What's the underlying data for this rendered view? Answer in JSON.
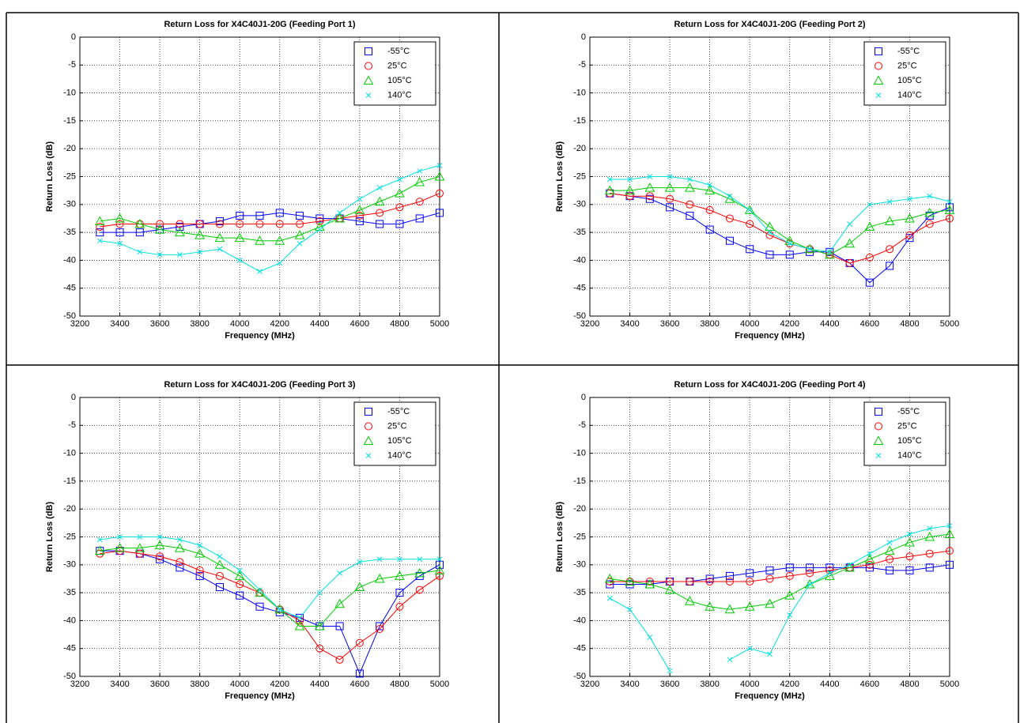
{
  "chart_data": [
    {
      "type": "line",
      "title": "Return Loss for X4C40J1-20G (Feeding Port 1)",
      "x_label": "Frequency (MHz)",
      "y_label": "Return Loss (dB)",
      "x": [
        3300,
        3400,
        3500,
        3600,
        3700,
        3800,
        3900,
        4000,
        4100,
        4200,
        4300,
        4400,
        4500,
        4600,
        4700,
        4800,
        4900,
        5000
      ],
      "xlim": [
        3200,
        5000
      ],
      "xticks": [
        3200,
        3400,
        3600,
        3800,
        4000,
        4200,
        4400,
        4600,
        4800,
        5000
      ],
      "ylim": [
        -50,
        0
      ],
      "yticks": [
        0,
        -5,
        -10,
        -15,
        -20,
        -25,
        -30,
        -35,
        -40,
        -45,
        -50
      ],
      "grid": true,
      "legend": "upper right",
      "series": [
        {
          "name": "-55°C",
          "color": "#0000ff",
          "marker": "square",
          "values": [
            -35,
            -35,
            -35,
            -34.5,
            -34,
            -33.5,
            -33,
            -32,
            -32,
            -31.5,
            -32,
            -32.5,
            -32.5,
            -33,
            -33.5,
            -33.5,
            -32.5,
            -31.5
          ]
        },
        {
          "name": "25°C",
          "color": "#ff0000",
          "marker": "circle",
          "values": [
            -34,
            -33.5,
            -33.5,
            -33.5,
            -33.5,
            -33.5,
            -33.5,
            -33.5,
            -33.5,
            -33.5,
            -33.5,
            -33,
            -32.5,
            -32,
            -31.5,
            -30.5,
            -29.5,
            -28
          ]
        },
        {
          "name": "105°C",
          "color": "#00cc00",
          "marker": "triangle",
          "values": [
            -33,
            -32.5,
            -33.5,
            -34.5,
            -35,
            -35.5,
            -36,
            -36,
            -36.5,
            -36.5,
            -35.5,
            -34,
            -32.5,
            -31,
            -29.5,
            -28,
            -26,
            -25
          ]
        },
        {
          "name": "140°C",
          "color": "#00e0e0",
          "marker": "x",
          "values": [
            -36.5,
            -37,
            -38.5,
            -39,
            -39,
            -38.5,
            -38,
            -40,
            -42,
            -40.5,
            -37,
            -34.5,
            -31.5,
            -29,
            -27,
            -25.5,
            -24,
            -23
          ]
        }
      ]
    },
    {
      "type": "line",
      "title": "Return Loss for X4C40J1-20G (Feeding Port 2)",
      "x_label": "Frequency (MHz)",
      "y_label": "Return Loss (dB)",
      "x": [
        3300,
        3400,
        3500,
        3600,
        3700,
        3800,
        3900,
        4000,
        4100,
        4200,
        4300,
        4400,
        4500,
        4600,
        4700,
        4800,
        4900,
        5000
      ],
      "xlim": [
        3200,
        5000
      ],
      "xticks": [
        3200,
        3400,
        3600,
        3800,
        4000,
        4200,
        4400,
        4600,
        4800,
        5000
      ],
      "ylim": [
        -50,
        0
      ],
      "yticks": [
        0,
        -5,
        -10,
        -15,
        -20,
        -25,
        -30,
        -35,
        -40,
        -45,
        -50
      ],
      "grid": true,
      "legend": "upper right",
      "series": [
        {
          "name": "-55°C",
          "color": "#0000ff",
          "marker": "square",
          "values": [
            -28,
            -28.5,
            -29,
            -30.5,
            -32,
            -34.5,
            -36.5,
            -38,
            -39,
            -39,
            -38.5,
            -38.5,
            -40.5,
            -44,
            -41,
            -36,
            -32,
            -30.5
          ]
        },
        {
          "name": "25°C",
          "color": "#ff0000",
          "marker": "circle",
          "values": [
            -28,
            -28.5,
            -28.5,
            -29,
            -30,
            -31,
            -32.5,
            -33.5,
            -35.5,
            -37,
            -38,
            -39,
            -40.5,
            -39.5,
            -38,
            -35.5,
            -33.5,
            -32.5
          ]
        },
        {
          "name": "105°C",
          "color": "#00cc00",
          "marker": "triangle",
          "values": [
            -27.5,
            -27.5,
            -27,
            -27,
            -27,
            -27.5,
            -29,
            -31,
            -34,
            -36.5,
            -38,
            -39,
            -37,
            -34,
            -33,
            -32.5,
            -31.5,
            -31
          ]
        },
        {
          "name": "140°C",
          "color": "#00e0e0",
          "marker": "x",
          "values": [
            -25.5,
            -25.5,
            -25,
            -25,
            -25.5,
            -26.5,
            -28.5,
            -31,
            -35,
            -37,
            -38,
            -38.5,
            -33.5,
            -30,
            -29.5,
            -29,
            -28.5,
            -29.5
          ]
        }
      ]
    },
    {
      "type": "line",
      "title": "Return Loss for X4C40J1-20G (Feeding Port 3)",
      "x_label": "Frequency (MHz)",
      "y_label": "Return Loss (dB)",
      "x": [
        3300,
        3400,
        3500,
        3600,
        3700,
        3800,
        3900,
        4000,
        4100,
        4200,
        4300,
        4400,
        4500,
        4600,
        4700,
        4800,
        4900,
        5000
      ],
      "xlim": [
        3200,
        5000
      ],
      "xticks": [
        3200,
        3400,
        3600,
        3800,
        4000,
        4200,
        4400,
        4600,
        4800,
        5000
      ],
      "ylim": [
        -50,
        0
      ],
      "yticks": [
        0,
        -5,
        -10,
        -15,
        -20,
        -25,
        -30,
        -35,
        -40,
        -45,
        -50
      ],
      "grid": true,
      "legend": "upper right",
      "series": [
        {
          "name": "-55°C",
          "color": "#0000ff",
          "marker": "square",
          "values": [
            -27.5,
            -27.5,
            -28,
            -29,
            -30.5,
            -32,
            -34,
            -35.5,
            -37.5,
            -38.5,
            -39.5,
            -41,
            -41,
            -49.5,
            -41,
            -35,
            -32,
            -30
          ]
        },
        {
          "name": "25°C",
          "color": "#ff0000",
          "marker": "circle",
          "values": [
            -28,
            -27.5,
            -28,
            -28.5,
            -29.5,
            -31,
            -32,
            -33.5,
            -35,
            -38,
            -40,
            -45,
            -47,
            -44,
            -41.5,
            -37.5,
            -34.5,
            -32
          ]
        },
        {
          "name": "105°C",
          "color": "#00cc00",
          "marker": "triangle",
          "values": [
            -27.5,
            -27,
            -27,
            -26.5,
            -27,
            -28,
            -30,
            -32,
            -35,
            -38,
            -41,
            -41,
            -37,
            -34,
            -32.5,
            -32,
            -31.5,
            -31
          ]
        },
        {
          "name": "140°C",
          "color": "#00e0e0",
          "marker": "x",
          "values": [
            -25.5,
            -25,
            -25,
            -25,
            -25.5,
            -26.5,
            -28.5,
            -31,
            -34.5,
            -38,
            -39.5,
            -35,
            -31.5,
            -29.5,
            -29,
            -29,
            -29,
            -29
          ]
        }
      ]
    },
    {
      "type": "line",
      "title": "Return Loss for X4C40J1-20G (Feeding Port 4)",
      "x_label": "Frequency (MHz)",
      "y_label": "Return Loss (dB)",
      "x": [
        3300,
        3400,
        3500,
        3600,
        3700,
        3800,
        3900,
        4000,
        4100,
        4200,
        4300,
        4400,
        4500,
        4600,
        4700,
        4800,
        4900,
        5000
      ],
      "xlim": [
        3200,
        5000
      ],
      "xticks": [
        3200,
        3400,
        3600,
        3800,
        4000,
        4200,
        4400,
        4600,
        4800,
        5000
      ],
      "ylim": [
        -50,
        0
      ],
      "yticks": [
        0,
        -5,
        -10,
        -15,
        -20,
        -25,
        -30,
        -35,
        -40,
        -45,
        -50
      ],
      "grid": true,
      "legend": "upper right",
      "series": [
        {
          "name": "-55°C",
          "color": "#0000ff",
          "marker": "square",
          "values": [
            -33.5,
            -33.5,
            -33.5,
            -33,
            -33,
            -32.5,
            -32,
            -31.5,
            -31,
            -30.5,
            -30.5,
            -30.5,
            -30.5,
            -30.5,
            -31,
            -31,
            -30.5,
            -30
          ]
        },
        {
          "name": "25°C",
          "color": "#ff0000",
          "marker": "circle",
          "values": [
            -33,
            -33,
            -33,
            -33,
            -33,
            -33,
            -33,
            -33,
            -32.5,
            -32,
            -31.5,
            -31,
            -30.5,
            -30,
            -29,
            -28.5,
            -28,
            -27.5
          ]
        },
        {
          "name": "105°C",
          "color": "#00cc00",
          "marker": "triangle",
          "values": [
            -32.5,
            -33,
            -33.5,
            -34.5,
            -36.5,
            -37.5,
            -38,
            -37.5,
            -37,
            -35.5,
            -33.5,
            -32,
            -30.5,
            -29,
            -27.5,
            -26,
            -25,
            -24.5
          ]
        },
        {
          "name": "140°C",
          "color": "#00e0e0",
          "marker": "x",
          "values": [
            -36,
            -38,
            -43,
            -49,
            null,
            null,
            -47,
            -45,
            -46,
            -39,
            -33.5,
            -31.5,
            -30,
            -28,
            -26,
            -24.5,
            -23.5,
            -23
          ]
        }
      ]
    }
  ]
}
